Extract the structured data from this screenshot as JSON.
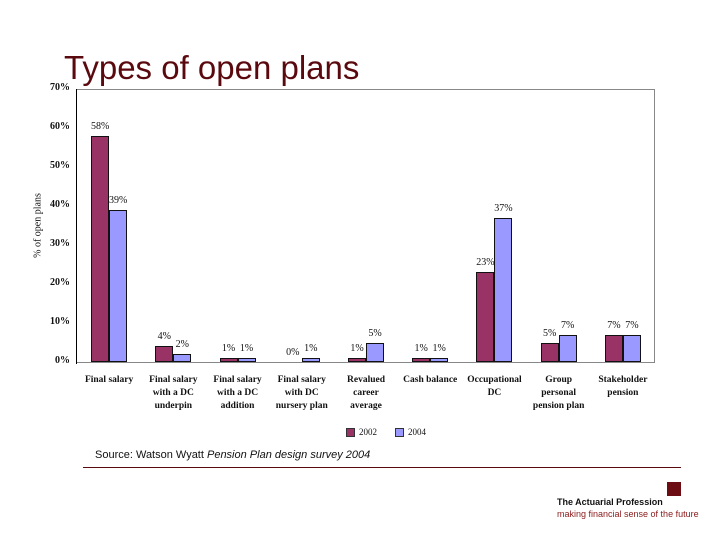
{
  "slide": {
    "title": "Types of open plans",
    "source_prefix": "Source: Watson Wyatt ",
    "source_italic": "Pension Plan design survey 2004",
    "logo": {
      "name": "The Actuarial Profession",
      "tagline": "making financial sense of the future"
    }
  },
  "chart_data": {
    "type": "bar",
    "title": "Types of open plans",
    "xlabel": "",
    "ylabel": "% of open plans",
    "ylim": [
      0,
      70
    ],
    "yticks": [
      "0%",
      "10%",
      "20%",
      "30%",
      "40%",
      "50%",
      "60%",
      "70%"
    ],
    "grid": false,
    "legend_position": "bottom",
    "categories": [
      "Final salary",
      "Final salary with a DC underpin",
      "Final salary with a DC addition",
      "Final salary with DC nursery plan",
      "Revalued career average",
      "Cash balance",
      "Occupational DC",
      "Group personal pension plan",
      "Stakeholder pension"
    ],
    "category_lines": [
      [
        "Final salary"
      ],
      [
        "Final salary",
        "with a DC",
        "underpin"
      ],
      [
        "Final salary",
        "with a DC",
        "addition"
      ],
      [
        "Final salary",
        "with DC",
        "nursery plan"
      ],
      [
        "Revalued",
        "career",
        "average"
      ],
      [
        "Cash balance"
      ],
      [
        "Occupational",
        "DC"
      ],
      [
        "Group",
        "personal",
        "pension plan"
      ],
      [
        "Stakeholder",
        "pension"
      ]
    ],
    "series": [
      {
        "name": "2002",
        "color": "#993366",
        "values": [
          58,
          4,
          1,
          0,
          1,
          1,
          23,
          5,
          7
        ],
        "labels": [
          "58%",
          "4%",
          "1%",
          "0%",
          "1%",
          "1%",
          "23%",
          "5%",
          "7%"
        ]
      },
      {
        "name": "2004",
        "color": "#9999ff",
        "values": [
          39,
          2,
          1,
          1,
          5,
          1,
          37,
          7,
          7
        ],
        "labels": [
          "39%",
          "2%",
          "1%",
          "1%",
          "5%",
          "1%",
          "37%",
          "7%",
          "7%"
        ]
      }
    ]
  }
}
